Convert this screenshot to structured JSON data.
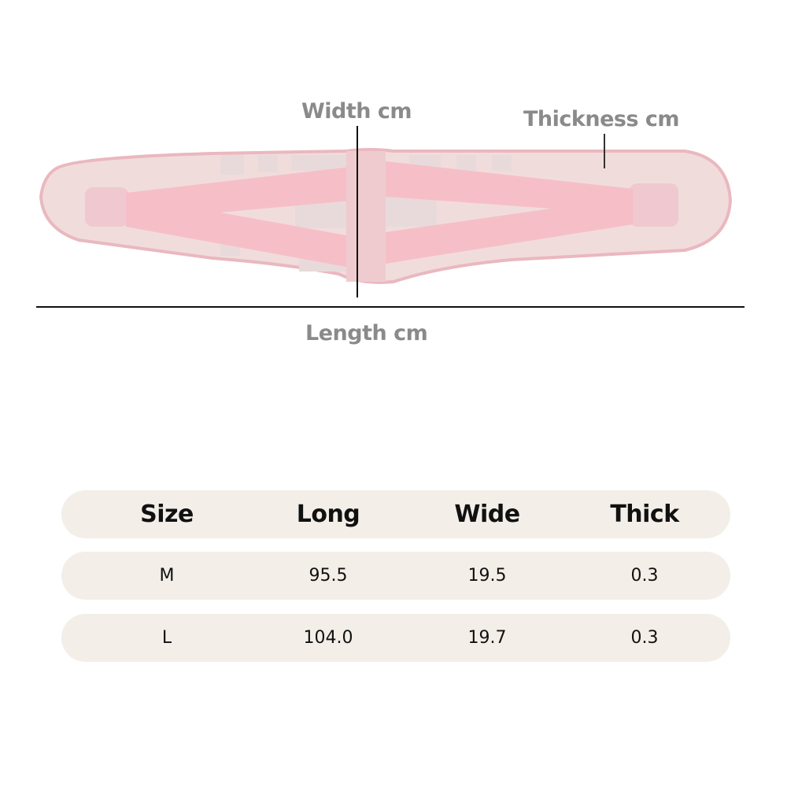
{
  "diagram": {
    "width_label": "Width cm",
    "thickness_label": "Thickness cm",
    "length_label": "Length cm",
    "belt_color": "#f4c6cc",
    "panel_color": "#f1dcdc"
  },
  "size_table": {
    "headers": [
      "Size",
      "Long",
      "Wide",
      "Thick"
    ],
    "rows": [
      [
        "M",
        "95.5",
        "19.5",
        "0.3"
      ],
      [
        "L",
        "104.0",
        "19.7",
        "0.3"
      ]
    ],
    "row_color": "#f3eee8"
  }
}
